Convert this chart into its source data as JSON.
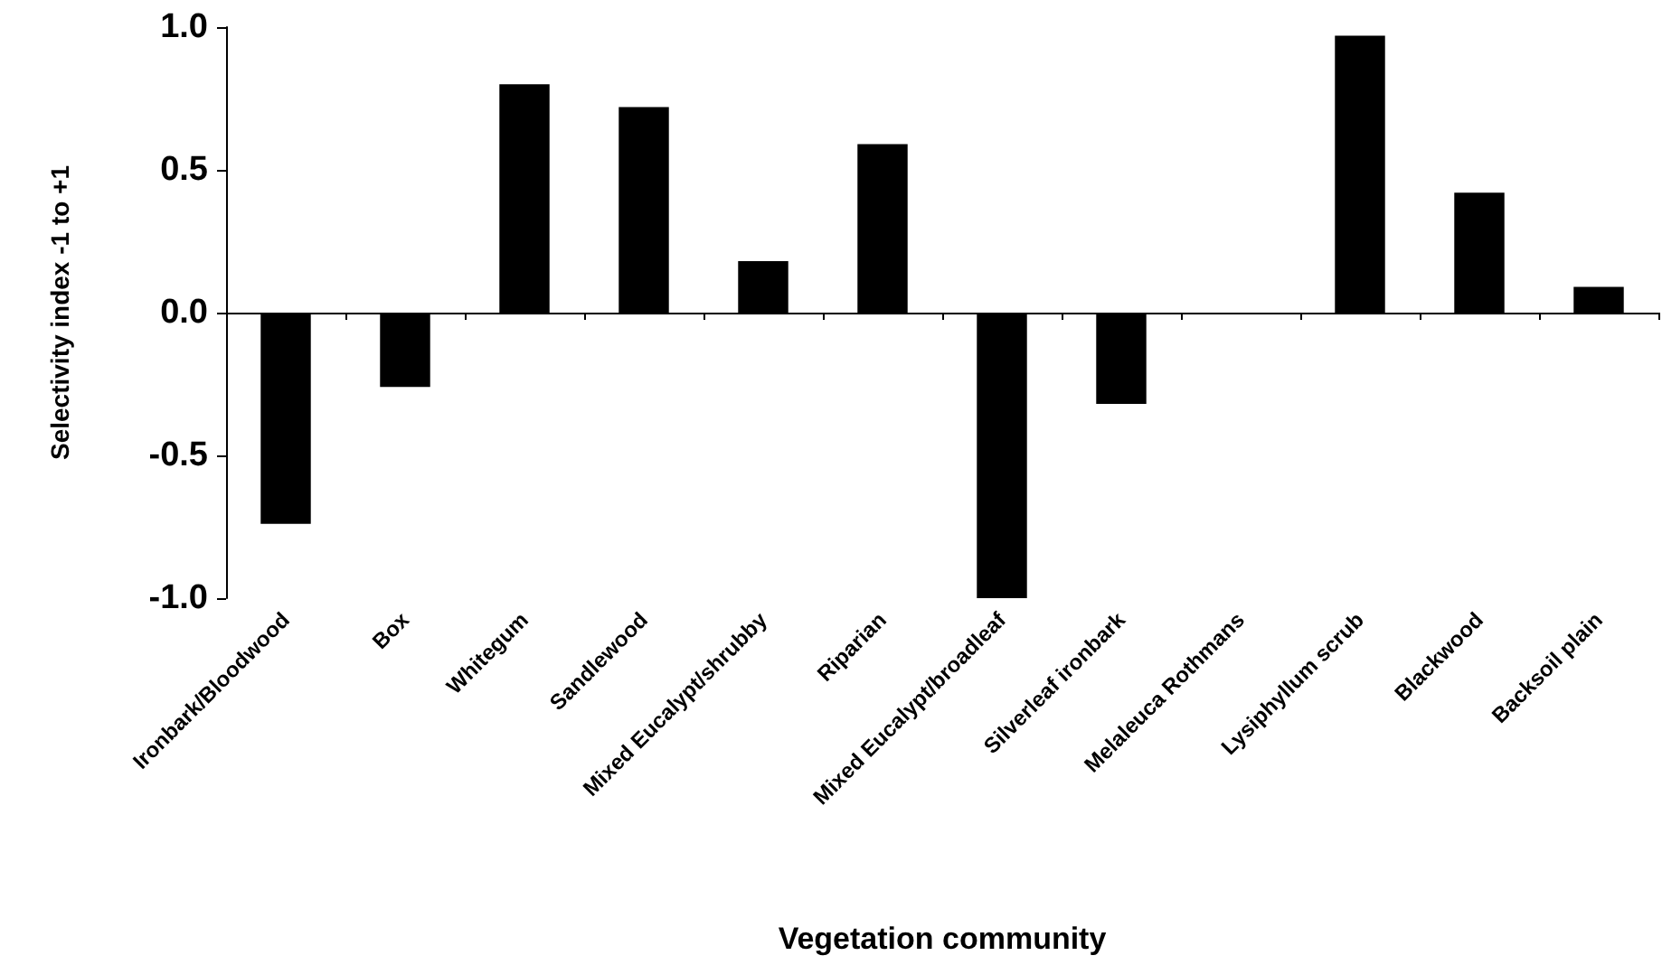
{
  "chart_data": {
    "type": "bar",
    "xlabel": "Vegetation community",
    "ylabel": "Selectivity index -1 to +1",
    "categories": [
      "Ironbark/Bloodwood",
      "Box",
      "Whitegum",
      "Sandlewood",
      "Mixed Eucalypt/shrubby",
      "Riparian",
      "Mixed Eucalypt/broadleaf",
      "Silverleaf ironbark",
      "Melaleuca Rothmans",
      "Lysiphyllum scrub",
      "Blackwood",
      "Backsoil plain"
    ],
    "values": [
      -0.74,
      -0.26,
      0.8,
      0.72,
      0.18,
      0.59,
      -1.0,
      -0.32,
      0,
      0.97,
      0.42,
      0.09
    ],
    "color": "#000000",
    "ylim": [
      -1,
      1
    ],
    "yticks": [
      {
        "value": -1,
        "label": "-1.0"
      },
      {
        "value": -0.5,
        "label": "-0.5"
      },
      {
        "value": 0,
        "label": "0.0"
      },
      {
        "value": 0.5,
        "label": "0.5"
      },
      {
        "value": 1,
        "label": "1.0"
      }
    ]
  }
}
